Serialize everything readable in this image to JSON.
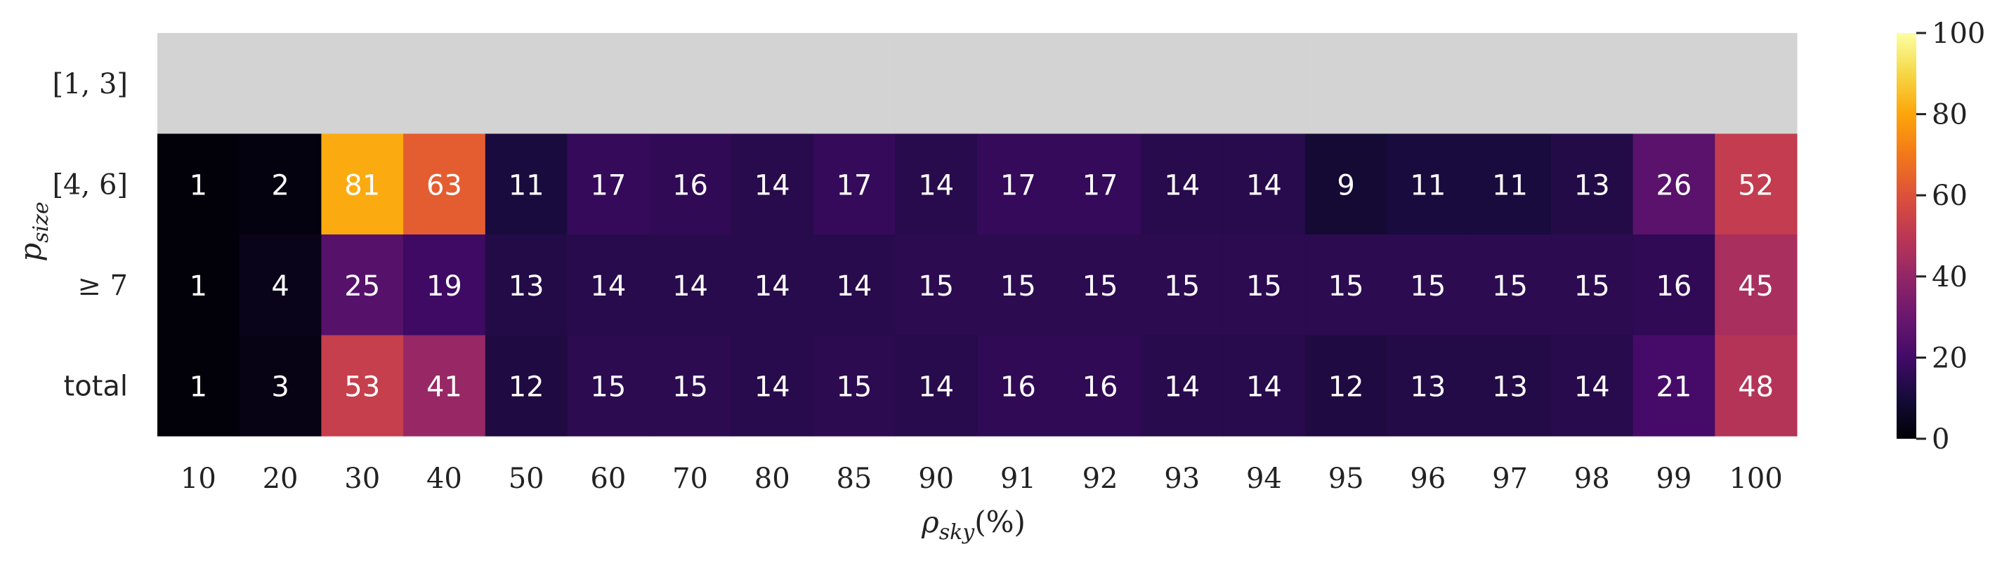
{
  "chart_data": {
    "type": "heatmap",
    "xlabel_main": "ρ",
    "xlabel_sub": "sky",
    "xlabel_suffix": "(%)",
    "ylabel_main": "p",
    "ylabel_sub": "size",
    "x_categories": [
      "10",
      "20",
      "30",
      "40",
      "50",
      "60",
      "70",
      "80",
      "85",
      "90",
      "91",
      "92",
      "93",
      "94",
      "95",
      "96",
      "97",
      "98",
      "99",
      "100"
    ],
    "y_categories": [
      "[1, 3]",
      "[4, 6]",
      "≥ 7",
      "total"
    ],
    "values": [
      [
        null,
        null,
        null,
        null,
        null,
        null,
        null,
        null,
        null,
        null,
        null,
        null,
        null,
        null,
        null,
        null,
        null,
        null,
        null,
        null
      ],
      [
        1,
        2,
        81,
        63,
        11,
        17,
        16,
        14,
        17,
        14,
        17,
        17,
        14,
        14,
        9,
        11,
        11,
        13,
        26,
        52
      ],
      [
        1,
        4,
        25,
        19,
        13,
        14,
        14,
        14,
        14,
        15,
        15,
        15,
        15,
        15,
        15,
        15,
        15,
        15,
        16,
        45
      ],
      [
        1,
        3,
        53,
        41,
        12,
        15,
        15,
        14,
        15,
        14,
        16,
        16,
        14,
        14,
        12,
        13,
        13,
        14,
        21,
        48
      ]
    ],
    "missing_color": "#d3d3d3",
    "colormap": "inferno",
    "colorbar": {
      "range": [
        0,
        100
      ],
      "ticks": [
        "0",
        "20",
        "40",
        "60",
        "80",
        "100"
      ]
    }
  }
}
